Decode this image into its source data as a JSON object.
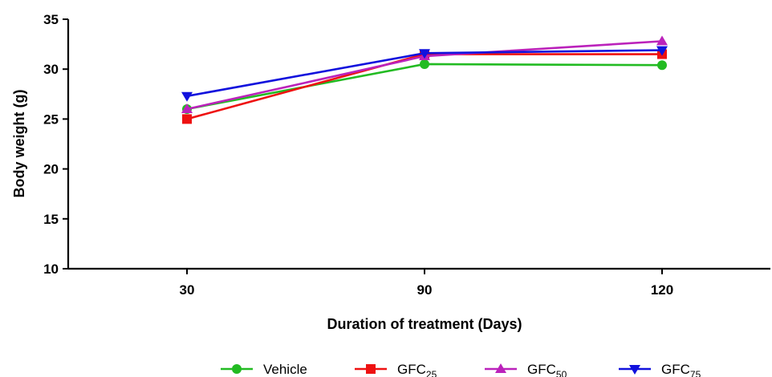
{
  "chart_data": {
    "type": "line",
    "title": "",
    "xlabel": "Duration of treatment (Days)",
    "ylabel": "Body weight (g)",
    "categories": [
      "30",
      "90",
      "120"
    ],
    "ylim": [
      10,
      35
    ],
    "yticks": [
      "10",
      "15",
      "20",
      "25",
      "30",
      "35"
    ],
    "grid": false,
    "legend_position": "bottom",
    "series": [
      {
        "name": "Vehicle",
        "name_base": "Vehicle",
        "name_sub": "",
        "color": "#22bb22",
        "marker": "circle",
        "values": [
          26.0,
          30.5,
          30.4
        ]
      },
      {
        "name": "GFC25",
        "name_base": "GFC",
        "name_sub": "25",
        "color": "#ee1111",
        "marker": "square",
        "values": [
          25.0,
          31.5,
          31.5
        ]
      },
      {
        "name": "GFC50",
        "name_base": "GFC",
        "name_sub": "50",
        "color": "#bb22bb",
        "marker": "triangle-up",
        "values": [
          26.0,
          31.3,
          32.8
        ]
      },
      {
        "name": "GFC75",
        "name_base": "GFC",
        "name_sub": "75",
        "color": "#1111dd",
        "marker": "triangle-down",
        "values": [
          27.3,
          31.6,
          31.9
        ]
      }
    ]
  }
}
